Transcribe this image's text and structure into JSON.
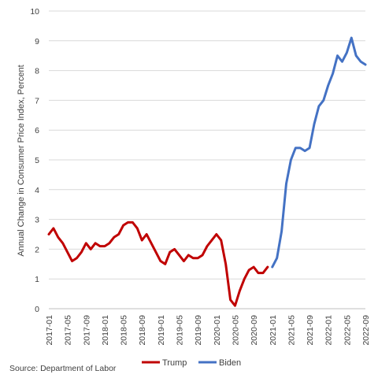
{
  "chart_data": {
    "type": "line",
    "title": "",
    "xlabel": "",
    "ylabel": "Annual Change in Consumer Price Index, Percent",
    "ylim": [
      0,
      10
    ],
    "yticks": [
      "0",
      "1",
      "2",
      "3",
      "4",
      "5",
      "6",
      "7",
      "8",
      "9",
      "10"
    ],
    "x_tick_labels": [
      "2017-01",
      "2017-05",
      "2017-09",
      "2018-01",
      "2018-05",
      "2018-09",
      "2019-01",
      "2019-05",
      "2019-09",
      "2020-01",
      "2020-05",
      "2020-09",
      "2021-01",
      "2021-05",
      "2021-09",
      "2022-01",
      "2022-05",
      "2022-09"
    ],
    "grid": "horizontal",
    "legend_position": "bottom",
    "x_start": "2017-01",
    "series": [
      {
        "name": "Trump",
        "color": "#c00000",
        "start": "2017-01",
        "values": [
          2.5,
          2.7,
          2.4,
          2.2,
          1.9,
          1.6,
          1.7,
          1.9,
          2.2,
          2.0,
          2.2,
          2.1,
          2.1,
          2.2,
          2.4,
          2.5,
          2.8,
          2.9,
          2.9,
          2.7,
          2.3,
          2.5,
          2.2,
          1.9,
          1.6,
          1.5,
          1.9,
          2.0,
          1.8,
          1.6,
          1.8,
          1.7,
          1.7,
          1.8,
          2.1,
          2.3,
          2.5,
          2.3,
          1.5,
          0.3,
          0.1,
          0.6,
          1.0,
          1.3,
          1.4,
          1.2,
          1.2,
          1.4
        ]
      },
      {
        "name": "Biden",
        "color": "#4472c4",
        "start": "2021-01",
        "values": [
          1.4,
          1.7,
          2.6,
          4.2,
          5.0,
          5.4,
          5.4,
          5.3,
          5.4,
          6.2,
          6.8,
          7.0,
          7.5,
          7.9,
          8.5,
          8.3,
          8.6,
          9.1,
          8.5,
          8.3,
          8.2
        ]
      }
    ],
    "source": "Source: Department of Labor"
  },
  "colors": {
    "trump": "#c00000",
    "biden": "#4472c4",
    "grid": "#d9d9d9",
    "text": "#404040"
  }
}
